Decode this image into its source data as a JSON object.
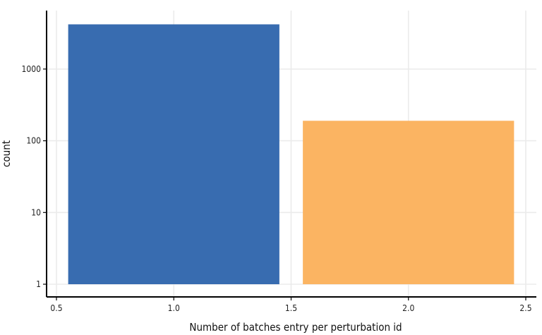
{
  "chart_data": {
    "type": "bar",
    "title": "",
    "xlabel": "Number of batches entry per perturbation id",
    "ylabel": "count",
    "y_scale": "log10",
    "grid": true,
    "legend": "none",
    "xlim": [
      0.5,
      2.5
    ],
    "ylim": [
      1,
      4200
    ],
    "x_ticks": [
      "0.5",
      "1.0",
      "1.5",
      "2.0",
      "2.5"
    ],
    "y_ticks": [
      "1",
      "10",
      "100",
      "1000"
    ],
    "bars": [
      {
        "x": 1,
        "x_start": 0.55,
        "x_end": 1.45,
        "value": 4200,
        "color": "#386cb0"
      },
      {
        "x": 2,
        "x_start": 1.55,
        "x_end": 2.45,
        "value": 190,
        "color": "#fbb462"
      }
    ]
  }
}
